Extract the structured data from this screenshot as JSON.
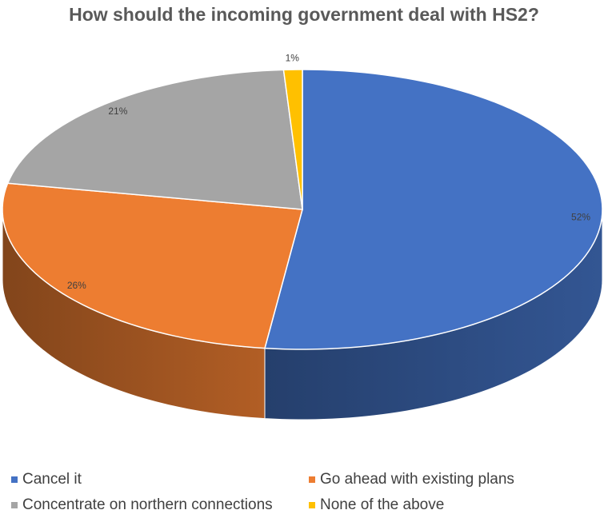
{
  "chart_data": {
    "type": "pie",
    "title": "How should the incoming government deal with HS2?",
    "categories": [
      "Cancel it",
      "Go ahead with existing plans",
      "Concentrate on northern connections",
      "None of the above"
    ],
    "values": [
      52,
      26,
      21,
      1
    ],
    "value_labels": [
      "52%",
      "26%",
      "21%",
      "1%"
    ],
    "colors": [
      "#4472c4",
      "#ed7d31",
      "#a5a5a5",
      "#ffc000"
    ],
    "legend": "bottom"
  }
}
